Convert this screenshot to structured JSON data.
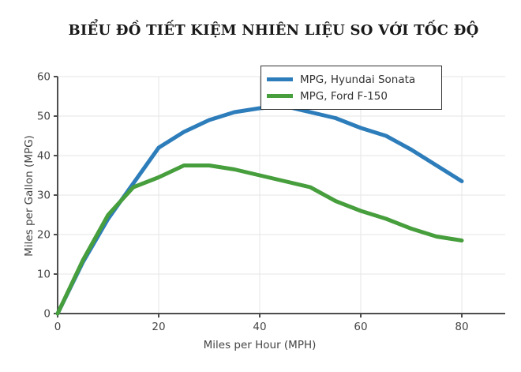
{
  "chart_data": {
    "type": "line",
    "title": "BIỂU ĐỒ TIẾT KIỆM NHIÊN LIỆU SO VỚI TỐC ĐỘ",
    "xlabel": "Miles per Hour (MPH)",
    "ylabel": "Miles per Gallon (MPG)",
    "x": [
      0,
      5,
      10,
      15,
      20,
      25,
      30,
      35,
      40,
      45,
      50,
      55,
      60,
      65,
      70,
      75,
      80
    ],
    "series": [
      {
        "name": "MPG, Hyundai Sonata",
        "color": "#2d7dbb",
        "values": [
          0,
          13,
          24,
          33,
          42,
          46,
          49,
          51,
          52,
          52.5,
          51,
          49.5,
          47,
          45,
          41.5,
          37.5,
          33.5
        ]
      },
      {
        "name": "MPG, Ford F-150",
        "color": "#469e3c",
        "values": [
          0,
          13.5,
          25,
          32,
          34.5,
          37.5,
          37.5,
          36.5,
          35,
          33.5,
          32,
          28.5,
          26,
          24,
          21.5,
          19.5,
          18.5
        ]
      }
    ],
    "xlim": [
      0,
      80
    ],
    "ylim": [
      0,
      60
    ],
    "xticks": [
      0,
      20,
      40,
      60,
      80
    ],
    "yticks": [
      0,
      10,
      20,
      30,
      40,
      50,
      60
    ],
    "grid": true,
    "legend_position": "top-center",
    "grid_color": "#e6e6e6",
    "axis_color": "#4d4d4d",
    "line_width": 5
  }
}
